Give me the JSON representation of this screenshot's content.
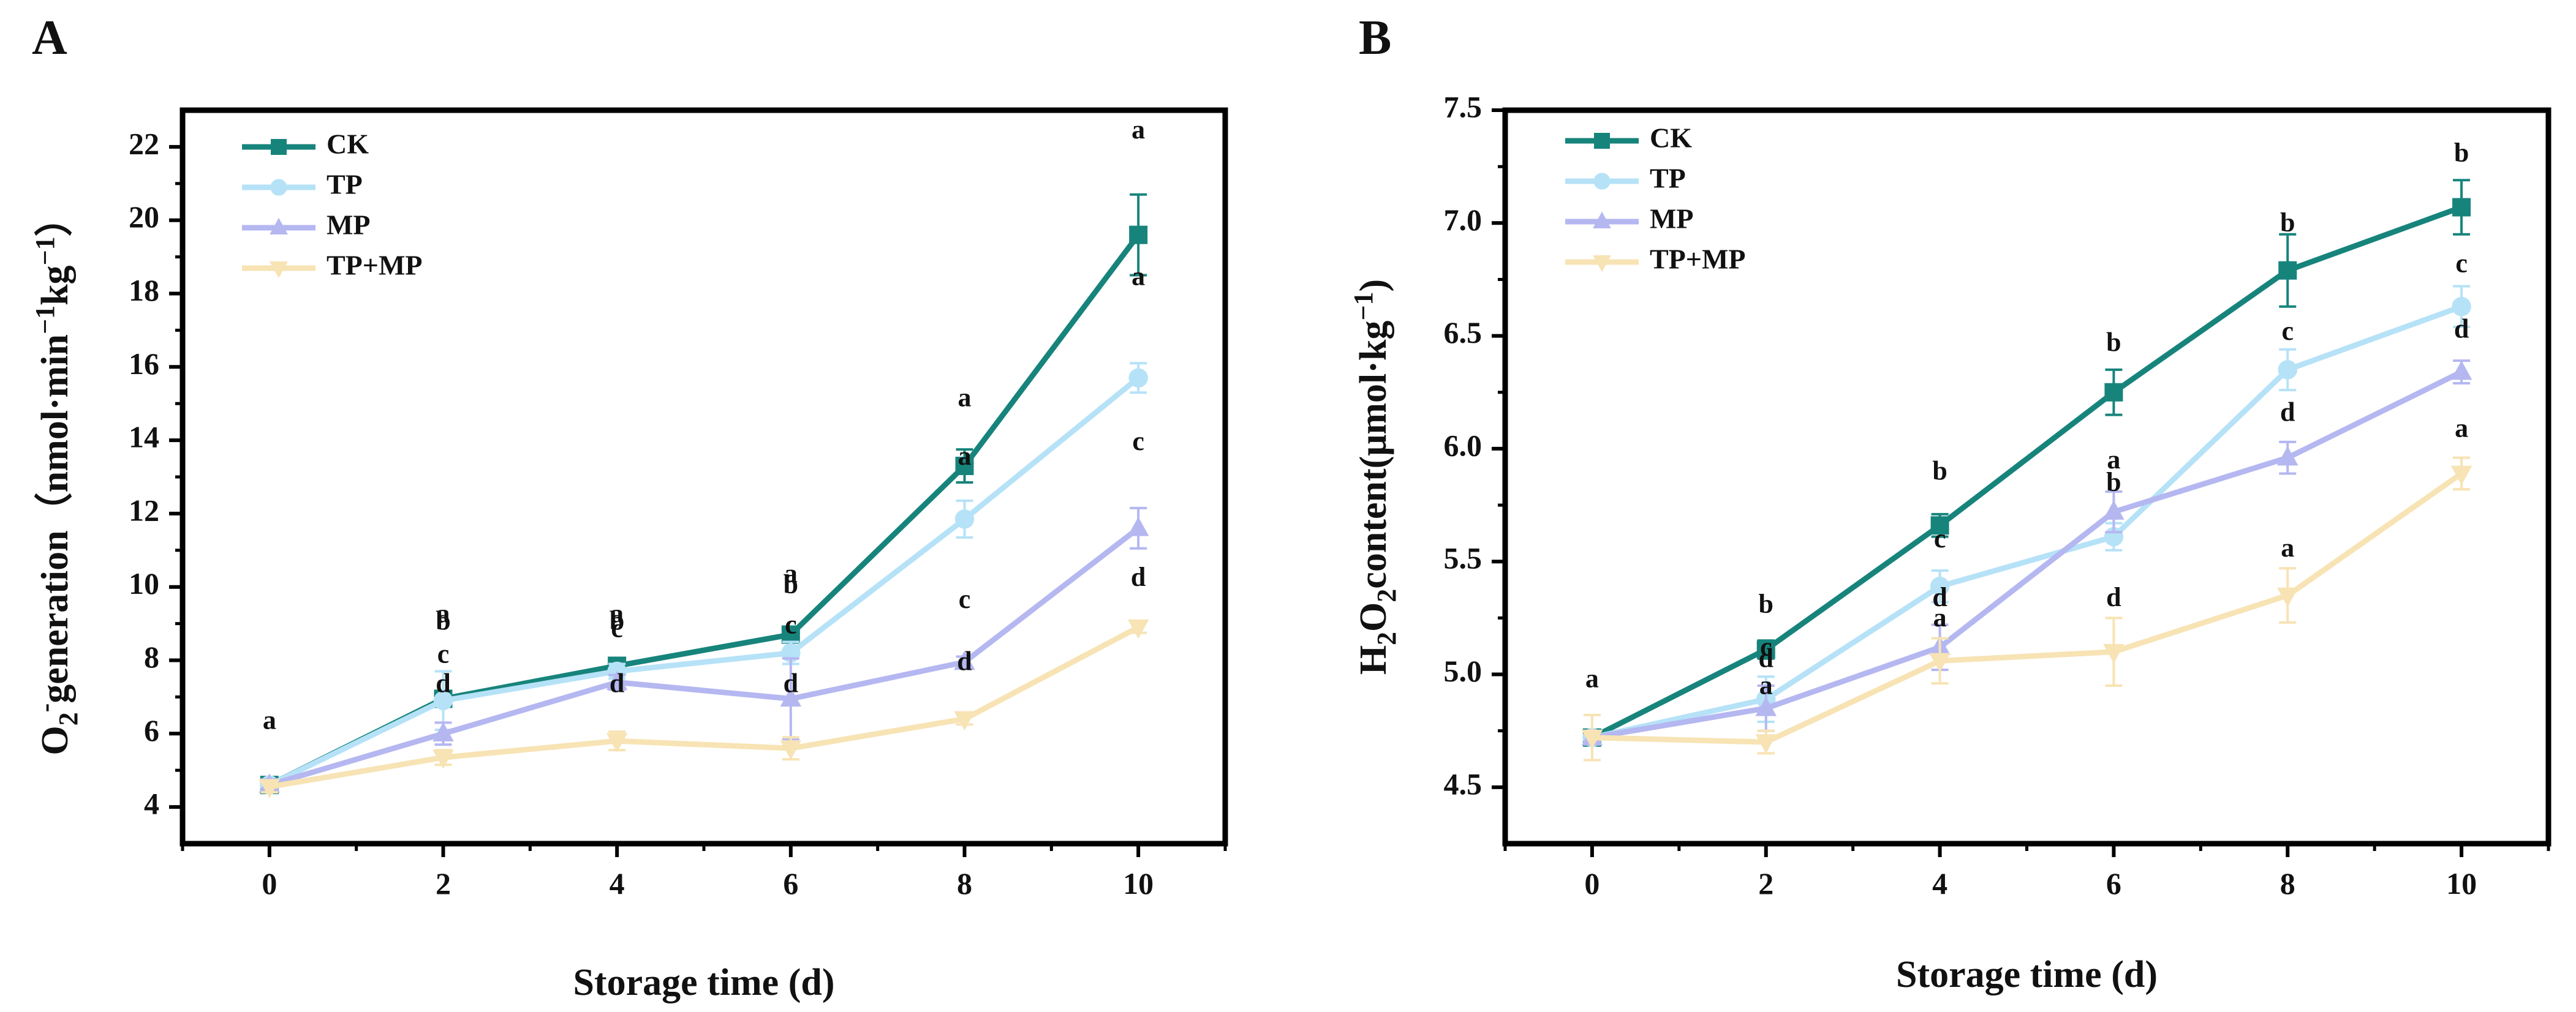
{
  "chart_data": [
    {
      "type": "line",
      "panel_label": "A",
      "title": "",
      "ylabel": {
        "main": "O",
        "sub": "2",
        "sup": "-",
        "rest": "generation（nmol·min",
        "sup2": "−1",
        "mid": "kg",
        "sup3": "−1",
        "end": "）"
      },
      "xlabel": "Storage time (d)",
      "xlim": [
        -1,
        11
      ],
      "ylim": [
        3,
        23
      ],
      "xticks": [
        "0",
        "2",
        "4",
        "6",
        "8",
        "10"
      ],
      "yticks": [
        "4",
        "6",
        "8",
        "10",
        "12",
        "14",
        "16",
        "18",
        "20",
        "22"
      ],
      "x": [
        0,
        2,
        4,
        6,
        8,
        10
      ],
      "legend_position": "top-left",
      "series": [
        {
          "name": "CK",
          "color": "#17847c",
          "marker": "square",
          "values": [
            4.6,
            6.95,
            7.85,
            8.7,
            13.3,
            19.6
          ],
          "errors": [
            0.15,
            0.2,
            0.15,
            0.1,
            0.45,
            1.1
          ]
        },
        {
          "name": "TP",
          "color": "#b6e2f7",
          "marker": "circle",
          "values": [
            4.6,
            6.9,
            7.7,
            8.2,
            11.85,
            15.7
          ],
          "errors": [
            0.15,
            0.8,
            0.2,
            0.3,
            0.5,
            0.4
          ]
        },
        {
          "name": "MP",
          "color": "#b5b7f1",
          "marker": "triangle-up",
          "values": [
            4.6,
            6.0,
            7.4,
            6.95,
            7.95,
            11.6
          ],
          "errors": [
            0.15,
            0.3,
            0.2,
            1.1,
            0.15,
            0.55
          ]
        },
        {
          "name": "TP+MP",
          "color": "#f7e3b4",
          "marker": "triangle-down",
          "values": [
            4.55,
            5.35,
            5.8,
            5.6,
            6.4,
            8.9
          ],
          "errors": [
            0.15,
            0.2,
            0.25,
            0.3,
            0.15,
            0.15
          ]
        }
      ],
      "annotations": [
        {
          "x": 0,
          "y": 6.3,
          "text": "a"
        },
        {
          "x": 2,
          "y": 9.2,
          "text": "a"
        },
        {
          "x": 2,
          "y": 9.0,
          "text": "b"
        },
        {
          "x": 2,
          "y": 8.1,
          "text": "c"
        },
        {
          "x": 2,
          "y": 7.3,
          "text": "d"
        },
        {
          "x": 4,
          "y": 9.2,
          "text": "a"
        },
        {
          "x": 4,
          "y": 9.0,
          "text": "b"
        },
        {
          "x": 4,
          "y": 8.8,
          "text": "c"
        },
        {
          "x": 4,
          "y": 7.3,
          "text": "d"
        },
        {
          "x": 6,
          "y": 10.3,
          "text": "a"
        },
        {
          "x": 6,
          "y": 10.0,
          "text": "b"
        },
        {
          "x": 6,
          "y": 8.9,
          "text": "c"
        },
        {
          "x": 6,
          "y": 7.3,
          "text": "d"
        },
        {
          "x": 8,
          "y": 15.1,
          "text": "a"
        },
        {
          "x": 8,
          "y": 13.5,
          "text": "a"
        },
        {
          "x": 8,
          "y": 9.6,
          "text": "c"
        },
        {
          "x": 8,
          "y": 7.9,
          "text": "d"
        },
        {
          "x": 10,
          "y": 22.4,
          "text": "a"
        },
        {
          "x": 10,
          "y": 18.4,
          "text": "a"
        },
        {
          "x": 10,
          "y": 13.9,
          "text": "c"
        },
        {
          "x": 10,
          "y": 10.2,
          "text": "d"
        }
      ]
    },
    {
      "type": "line",
      "panel_label": "B",
      "title": "",
      "ylabel": {
        "main": "H",
        "sub": "2",
        "mid": "O",
        "sub2": "2",
        "rest": "content(μmol·kg",
        "sup": "−1",
        "end": ")"
      },
      "xlabel": "Storage time (d)",
      "xlim": [
        -1,
        11
      ],
      "ylim": [
        4.25,
        7.5
      ],
      "xticks": [
        "0",
        "2",
        "4",
        "6",
        "8",
        "10"
      ],
      "yticks": [
        "4.5",
        "5.0",
        "5.5",
        "6.0",
        "6.5",
        "7.0",
        "7.5"
      ],
      "x": [
        0,
        2,
        4,
        6,
        8,
        10
      ],
      "legend_position": "top-left",
      "series": [
        {
          "name": "CK",
          "color": "#17847c",
          "marker": "square",
          "values": [
            4.72,
            5.11,
            5.66,
            6.25,
            6.79,
            7.07
          ],
          "errors": [
            0.03,
            0.04,
            0.05,
            0.1,
            0.16,
            0.12
          ]
        },
        {
          "name": "TP",
          "color": "#b6e2f7",
          "marker": "circle",
          "values": [
            4.72,
            4.89,
            5.39,
            5.61,
            6.35,
            6.63
          ],
          "errors": [
            0.03,
            0.1,
            0.07,
            0.06,
            0.09,
            0.09
          ]
        },
        {
          "name": "MP",
          "color": "#b5b7f1",
          "marker": "triangle-up",
          "values": [
            4.72,
            4.85,
            5.12,
            5.72,
            5.96,
            6.34
          ],
          "errors": [
            0.03,
            0.1,
            0.1,
            0.09,
            0.07,
            0.05
          ]
        },
        {
          "name": "TP+MP",
          "color": "#f7e3b4",
          "marker": "triangle-down",
          "values": [
            4.72,
            4.7,
            5.06,
            5.1,
            5.35,
            5.89
          ],
          "errors": [
            0.1,
            0.05,
            0.1,
            0.15,
            0.12,
            0.07
          ]
        }
      ],
      "annotations": [
        {
          "x": 0,
          "y": 4.97,
          "text": "a"
        },
        {
          "x": 2,
          "y": 5.3,
          "text": "b"
        },
        {
          "x": 2,
          "y": 5.11,
          "text": "c"
        },
        {
          "x": 2,
          "y": 5.06,
          "text": "d"
        },
        {
          "x": 2,
          "y": 4.94,
          "text": "a"
        },
        {
          "x": 4,
          "y": 5.89,
          "text": "b"
        },
        {
          "x": 4,
          "y": 5.59,
          "text": "c"
        },
        {
          "x": 4,
          "y": 5.33,
          "text": "d"
        },
        {
          "x": 4,
          "y": 5.24,
          "text": "a"
        },
        {
          "x": 6,
          "y": 6.46,
          "text": "b"
        },
        {
          "x": 6,
          "y": 5.94,
          "text": "a"
        },
        {
          "x": 6,
          "y": 5.84,
          "text": "b"
        },
        {
          "x": 6,
          "y": 5.33,
          "text": "d"
        },
        {
          "x": 8,
          "y": 6.99,
          "text": "b"
        },
        {
          "x": 8,
          "y": 6.51,
          "text": "c"
        },
        {
          "x": 8,
          "y": 6.15,
          "text": "d"
        },
        {
          "x": 8,
          "y": 5.55,
          "text": "a"
        },
        {
          "x": 10,
          "y": 7.3,
          "text": "b"
        },
        {
          "x": 10,
          "y": 6.81,
          "text": "c"
        },
        {
          "x": 10,
          "y": 6.52,
          "text": "d"
        },
        {
          "x": 10,
          "y": 6.08,
          "text": "a"
        }
      ]
    }
  ]
}
